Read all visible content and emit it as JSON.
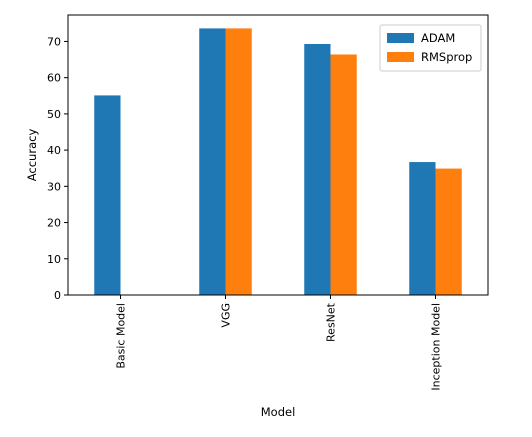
{
  "chart_data": {
    "type": "bar",
    "categories": [
      "Basic Model",
      "VGG",
      "ResNet",
      "Inception Model"
    ],
    "series": [
      {
        "name": "ADAM",
        "values": [
          55.1,
          73.6,
          69.3,
          36.7
        ],
        "color": "#1f77b4"
      },
      {
        "name": "RMSprop",
        "values": [
          0,
          73.6,
          66.4,
          34.9
        ],
        "color": "#ff7f0e"
      }
    ],
    "xlabel": "Model",
    "ylabel": "Accuracy",
    "ylim": [
      0,
      77.3
    ],
    "yticks": [
      0,
      10,
      20,
      30,
      40,
      50,
      60,
      70
    ],
    "legend_position": "top-right",
    "grid": false
  }
}
